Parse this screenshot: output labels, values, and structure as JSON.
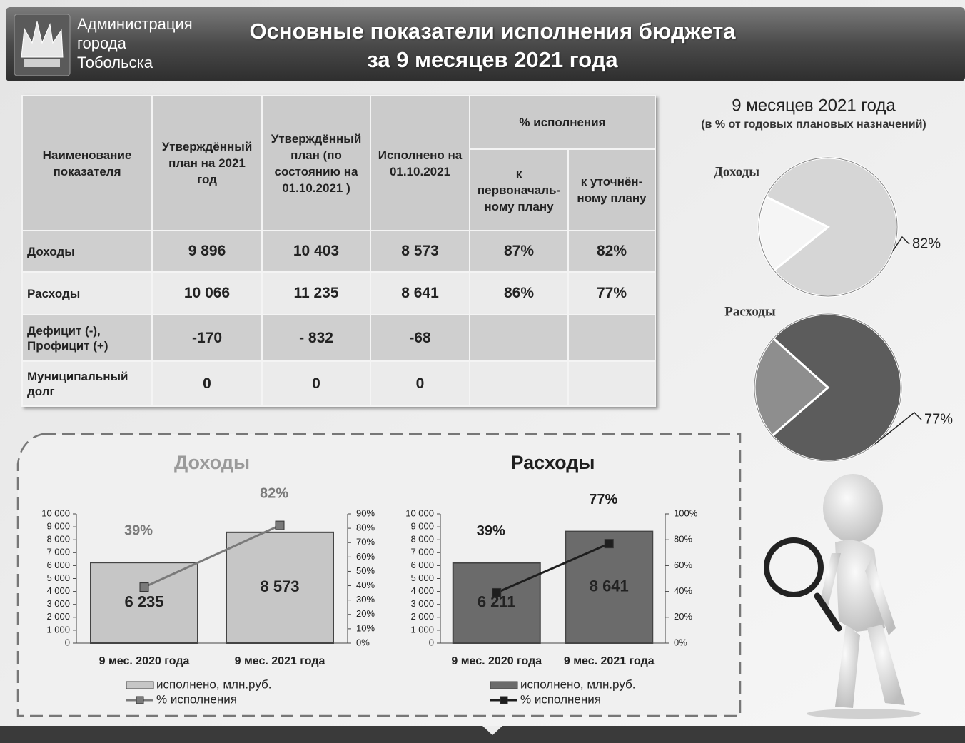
{
  "header": {
    "organization": [
      "Администрация",
      "города",
      "Тобольска"
    ],
    "title": [
      "Основные показатели исполнения бюджета",
      "за 9 месяцев 2021 года"
    ]
  },
  "table": {
    "headers": [
      "Наименование показателя",
      "Утверждённый план на 2021 год",
      "Утверждённый план (по состоянию на 01.10.2021 )",
      "Исполнено на 01.10.2021",
      "% исполнения"
    ],
    "subheaders": [
      "к первоначаль-ному плану",
      "к уточнён-ному плану"
    ],
    "rows": [
      [
        "Доходы",
        "9 896",
        "10 403",
        "8 573",
        "87%",
        "82%"
      ],
      [
        "Расходы",
        "10 066",
        "11 235",
        "8 641",
        "86%",
        "77%"
      ],
      [
        "Дефицит (-), Профицит (+)",
        "-170",
        "- 832",
        "-68"
      ],
      [
        "Муниципальный долг",
        "0",
        "0",
        "0"
      ]
    ]
  },
  "pie_panel": {
    "title": "9 месяцев  2021 года",
    "subtitle": "(в % от годовых плановых назначений)"
  },
  "chart_data": [
    {
      "type": "pie",
      "title": "Доходы",
      "values": [
        82,
        18
      ],
      "value_labels": [
        "82%",
        null
      ],
      "colors": [
        "#d6d6d6",
        "#f5f5f5"
      ]
    },
    {
      "type": "pie",
      "title": "Расходы",
      "values": [
        77,
        23
      ],
      "value_labels": [
        "77%",
        null
      ],
      "colors": [
        "#5c5c5c",
        "#8e8e8e"
      ]
    },
    {
      "type": "bar",
      "title": "Доходы",
      "categories": [
        "9 мес. 2020 года",
        "9 мес. 2021 года"
      ],
      "series": [
        {
          "name": "исполнено, млн.руб.",
          "color": "#c6c6c6",
          "values": [
            6235,
            8573
          ],
          "value_labels": [
            "6 235",
            "8 573"
          ]
        },
        {
          "name": "% исполнения",
          "type": "line",
          "axis": "y2",
          "color": "#7a7a7a",
          "values": [
            39,
            82
          ],
          "value_labels": [
            "39%",
            "82%"
          ]
        }
      ],
      "ylim": [
        0,
        10000
      ],
      "yticks": [
        0,
        {
          "value": 1000,
          "label": "1 000"
        },
        {
          "value": 2000,
          "label": "2 000"
        },
        {
          "value": 3000,
          "label": "3 000"
        },
        {
          "value": 4000,
          "label": "4 000"
        },
        {
          "value": 5000,
          "label": "5 000"
        },
        {
          "value": 6000,
          "label": "6 000"
        },
        {
          "value": 7000,
          "label": "7 000"
        },
        {
          "value": 8000,
          "label": "8 000"
        },
        {
          "value": 9000,
          "label": "9 000"
        },
        {
          "value": 10000,
          "label": "10 000"
        }
      ],
      "y2lim": [
        0,
        90
      ],
      "y2ticks": [
        {
          "value": 0,
          "label": "0%"
        },
        {
          "value": 10,
          "label": "10%"
        },
        {
          "value": 20,
          "label": "20%"
        },
        {
          "value": 30,
          "label": "30%"
        },
        {
          "value": 40,
          "label": "40%"
        },
        {
          "value": 50,
          "label": "50%"
        },
        {
          "value": 60,
          "label": "60%"
        },
        {
          "value": 70,
          "label": "70%"
        },
        {
          "value": 80,
          "label": "80%"
        },
        {
          "value": 90,
          "label": "90%"
        }
      ]
    },
    {
      "type": "bar",
      "title": "Расходы",
      "categories": [
        "9 мес. 2020 года",
        "9 мес. 2021 года"
      ],
      "series": [
        {
          "name": "исполнено, млн.руб.",
          "color": "#6b6b6b",
          "values": [
            6211,
            8641
          ],
          "value_labels": [
            "6 211",
            "8 641"
          ]
        },
        {
          "name": "% исполнения",
          "type": "line",
          "axis": "y2",
          "color": "#1e1e1e",
          "values": [
            39,
            77
          ],
          "value_labels": [
            "39%",
            "77%"
          ]
        }
      ],
      "ylim": [
        0,
        10000
      ],
      "yticks": [
        0,
        {
          "value": 1000,
          "label": "1 000"
        },
        {
          "value": 2000,
          "label": "2 000"
        },
        {
          "value": 3000,
          "label": "3 000"
        },
        {
          "value": 4000,
          "label": "4 000"
        },
        {
          "value": 5000,
          "label": "5 000"
        },
        {
          "value": 6000,
          "label": "6 000"
        },
        {
          "value": 7000,
          "label": "7 000"
        },
        {
          "value": 8000,
          "label": "8 000"
        },
        {
          "value": 9000,
          "label": "9 000"
        },
        {
          "value": 10000,
          "label": "10 000"
        }
      ],
      "y2lim": [
        0,
        100
      ],
      "y2ticks": [
        {
          "value": 0,
          "label": "0%"
        },
        {
          "value": 20,
          "label": "20%"
        },
        {
          "value": 40,
          "label": "40%"
        },
        {
          "value": 60,
          "label": "60%"
        },
        {
          "value": 80,
          "label": "80%"
        },
        {
          "value": 100,
          "label": "100%"
        }
      ]
    }
  ]
}
